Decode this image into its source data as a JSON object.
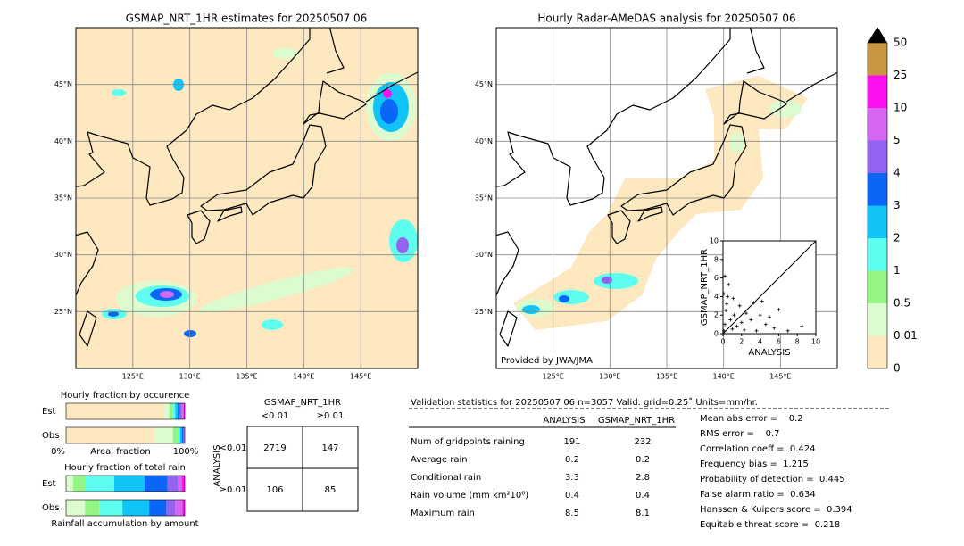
{
  "maps": [
    {
      "title": "GSMAP_NRT_1HR estimates for 20250507 06",
      "xlim": [
        120,
        150
      ],
      "ylim": [
        20,
        50
      ],
      "lon_ticks": [
        {
          "value": 125,
          "label": "125°E"
        },
        {
          "value": 130,
          "label": "130°E"
        },
        {
          "value": 135,
          "label": "135°E"
        },
        {
          "value": 140,
          "label": "140°E"
        },
        {
          "value": 145,
          "label": "145°E"
        }
      ],
      "lat_ticks": [
        {
          "value": 25,
          "label": "25°N"
        },
        {
          "value": 30,
          "label": "30°N"
        },
        {
          "value": 35,
          "label": "35°N"
        },
        {
          "value": 40,
          "label": "40°N"
        },
        {
          "value": 45,
          "label": "45°N"
        }
      ]
    },
    {
      "title": "Hourly Radar-AMeDAS analysis for 20250507 06",
      "xlim": [
        120,
        150
      ],
      "ylim": [
        20,
        50
      ],
      "lon_ticks": [
        {
          "value": 125,
          "label": "125°E"
        },
        {
          "value": 130,
          "label": "130°E"
        },
        {
          "value": 135,
          "label": "135°E"
        },
        {
          "value": 140,
          "label": "140°E"
        },
        {
          "value": 145,
          "label": "145°E"
        }
      ],
      "lat_ticks": [
        {
          "value": 25,
          "label": "25°N"
        },
        {
          "value": 30,
          "label": "30°N"
        },
        {
          "value": 35,
          "label": "35°N"
        },
        {
          "value": 40,
          "label": "40°N"
        },
        {
          "value": 45,
          "label": "45°N"
        }
      ],
      "credit": "Provided by JWA/JMA"
    }
  ],
  "colorbar": {
    "levels": [
      0,
      0.01,
      0.5,
      1,
      2,
      3,
      4,
      5,
      10,
      25,
      50
    ],
    "colors": [
      "#fde8bf",
      "#dcfbcf",
      "#94f484",
      "#5ffcf0",
      "#10c4f8",
      "#0a66f6",
      "#9262f0",
      "#d466f2",
      "#fc10ef",
      "#c99644"
    ],
    "extend_color": "#000000"
  },
  "scatter": {
    "xlabel": "ANALYSIS",
    "ylabel": "GSMAP_NRT_1HR",
    "xlim": [
      0,
      10
    ],
    "ylim": [
      0,
      10
    ],
    "xticks": [
      0,
      2,
      4,
      6,
      8,
      10
    ],
    "yticks": [
      0,
      2,
      4,
      6,
      8,
      10
    ],
    "x": [
      0.1,
      0.2,
      0.3,
      0.5,
      0.4,
      0.8,
      1,
      1.2,
      1.5,
      1.8,
      2,
      2.3,
      2.5,
      3,
      3.3,
      3.6,
      4,
      4.2,
      4.6,
      5,
      5.5,
      6,
      0.2,
      0.6,
      7,
      8.5,
      0.1,
      1.1
    ],
    "y": [
      0.3,
      1,
      2.5,
      4,
      3.2,
      1.5,
      0.5,
      2,
      0.8,
      3,
      1.2,
      0.4,
      2.2,
      1.5,
      3.3,
      0.3,
      2,
      3.5,
      1,
      1.8,
      0.6,
      2.6,
      6.2,
      5.3,
      0.3,
      0.8,
      4.3,
      3.8
    ]
  },
  "occurrence": {
    "title": "Hourly fraction by occurence",
    "rows": [
      {
        "label": "Est",
        "values": [
          83,
          4,
          3,
          2,
          2,
          2,
          1.5,
          1.5,
          1,
          0
        ]
      },
      {
        "label": "Obs",
        "values": [
          75,
          15,
          4,
          2,
          1.5,
          1.5,
          0.5,
          0.5,
          0,
          0
        ]
      }
    ],
    "axis_left": "0%",
    "axis_label": "Areal fraction",
    "axis_right": "100%"
  },
  "total_rain": {
    "title": "Hourly fraction of total rain",
    "rows": [
      {
        "label": "Est",
        "values": [
          0,
          6,
          10.5,
          24,
          25.5,
          19.5,
          9,
          3,
          2.5,
          0
        ]
      },
      {
        "label": "Obs",
        "values": [
          0,
          16,
          12,
          19.5,
          22.5,
          14.5,
          7.5,
          6,
          2,
          0
        ]
      }
    ],
    "caption": "Rainfall accumulation by amount"
  },
  "contingency": {
    "title": "GSMAP_NRT_1HR",
    "col_labels": [
      "<0.01",
      "≥0.01"
    ],
    "row_title": "ANALYSIS",
    "row_labels": [
      "<0.01",
      "≥0.01"
    ],
    "cells": [
      [
        "2719",
        "147"
      ],
      [
        "106",
        "85"
      ]
    ]
  },
  "validation": {
    "title": "Validation statistics for 20250507 06  n=3057 Valid. grid=0.25˚ Units=mm/hr.",
    "columns": [
      "ANALYSIS",
      "GSMAP_NRT_1HR"
    ],
    "rows": [
      {
        "label": "Num of gridpoints raining",
        "values": [
          "191",
          "232"
        ]
      },
      {
        "label": "Average rain",
        "values": [
          "0.2",
          "0.2"
        ]
      },
      {
        "label": "Conditional rain",
        "values": [
          "3.3",
          "2.8"
        ]
      },
      {
        "label": "Rain volume (mm km²10⁶)",
        "values": [
          "0.4",
          "0.4"
        ]
      },
      {
        "label": "Maximum rain",
        "values": [
          "8.5",
          "8.1"
        ]
      }
    ],
    "scores": [
      "Mean abs error =    0.2",
      "RMS error =    0.7",
      "Correlation coeff =  0.424",
      "Frequency bias =  1.215",
      "Probability of detection =  0.445",
      "False alarm ratio =  0.634",
      "Hanssen & Kuipers score =  0.394",
      "Equitable threat score =  0.218"
    ]
  }
}
